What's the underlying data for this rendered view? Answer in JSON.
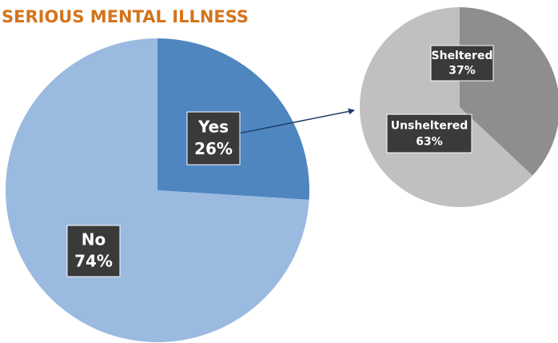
{
  "chart_data": [
    {
      "type": "pie",
      "title": "SERIOUS MENTAL ILLNESS",
      "categories": [
        "Yes",
        "No"
      ],
      "values": [
        26,
        74
      ],
      "value_labels": [
        "26%",
        "74%"
      ],
      "colors": [
        "#4f86c0",
        "#9bbae0"
      ]
    },
    {
      "type": "pie",
      "categories": [
        "Sheltered",
        "Unsheltered"
      ],
      "values": [
        37,
        63
      ],
      "value_labels": [
        "37%",
        "63%"
      ],
      "colors": [
        "#8e8e8e",
        "#c0c0c0"
      ]
    }
  ]
}
